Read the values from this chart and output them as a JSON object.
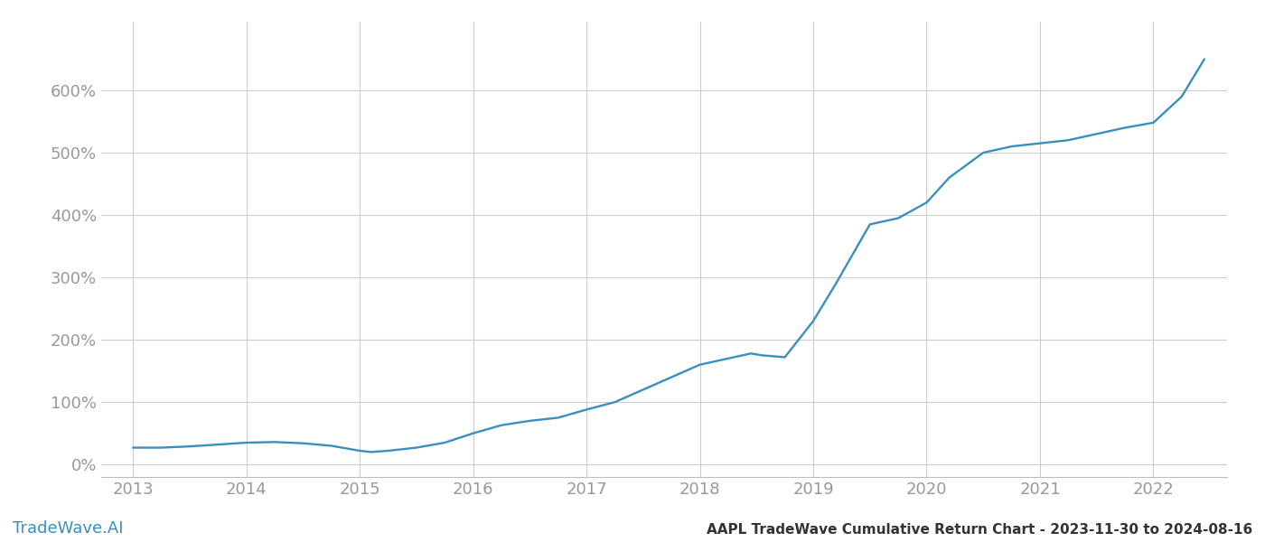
{
  "title_bottom": "AAPL TradeWave Cumulative Return Chart - 2023-11-30 to 2024-08-16",
  "watermark": "TradeWave.AI",
  "line_color": "#3a8fc0",
  "background_color": "#ffffff",
  "grid_color": "#cccccc",
  "x_years": [
    2013,
    2014,
    2015,
    2016,
    2017,
    2018,
    2019,
    2020,
    2021,
    2022
  ],
  "x_data": [
    2013.0,
    2013.25,
    2013.5,
    2013.75,
    2014.0,
    2014.25,
    2014.5,
    2014.75,
    2015.0,
    2015.1,
    2015.25,
    2015.5,
    2015.75,
    2016.0,
    2016.25,
    2016.5,
    2016.75,
    2017.0,
    2017.25,
    2017.5,
    2017.75,
    2018.0,
    2018.25,
    2018.45,
    2018.55,
    2018.75,
    2019.0,
    2019.2,
    2019.5,
    2019.75,
    2020.0,
    2020.2,
    2020.5,
    2020.75,
    2021.0,
    2021.25,
    2021.5,
    2021.75,
    2022.0,
    2022.25,
    2022.45
  ],
  "y_data": [
    27,
    27,
    29,
    32,
    35,
    36,
    34,
    30,
    22,
    20,
    22,
    27,
    35,
    50,
    63,
    70,
    75,
    88,
    100,
    120,
    140,
    160,
    170,
    178,
    175,
    172,
    230,
    290,
    385,
    395,
    420,
    460,
    500,
    510,
    515,
    520,
    530,
    540,
    548,
    590,
    650
  ],
  "ylim": [
    -20,
    710
  ],
  "yticks": [
    0,
    100,
    200,
    300,
    400,
    500,
    600
  ],
  "xlim": [
    2012.72,
    2022.65
  ],
  "axis_tick_color": "#999999",
  "tick_fontsize": 13,
  "footer_fontsize": 11,
  "watermark_fontsize": 13,
  "line_width": 1.7
}
